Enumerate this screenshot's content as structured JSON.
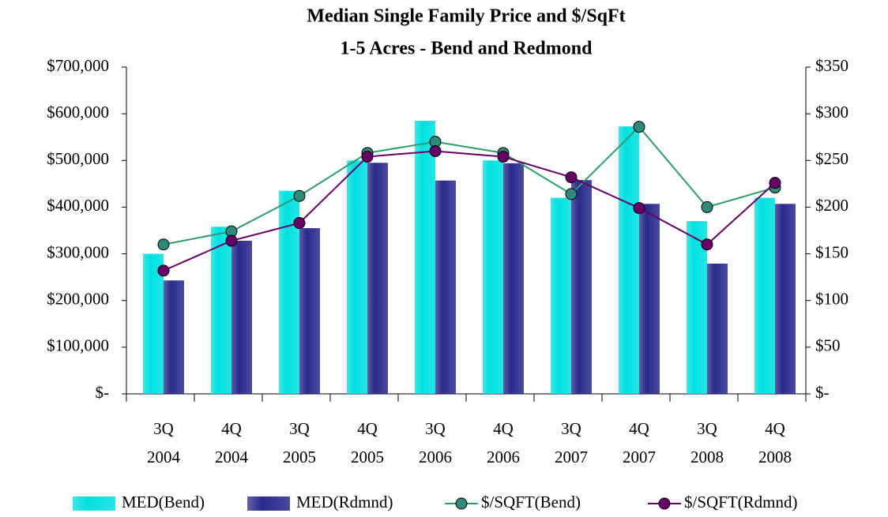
{
  "chart_data": {
    "type": "bar-line",
    "title": "Median Single Family Price and $/SqFt",
    "subtitle": "1-5 Acres - Bend and Redmond",
    "categories": [
      [
        "3Q",
        "2004"
      ],
      [
        "4Q",
        "2004"
      ],
      [
        "3Q",
        "2005"
      ],
      [
        "4Q",
        "2005"
      ],
      [
        "3Q",
        "2006"
      ],
      [
        "4Q",
        "2006"
      ],
      [
        "3Q",
        "2007"
      ],
      [
        "4Q",
        "2007"
      ],
      [
        "3Q",
        "2008"
      ],
      [
        "4Q",
        "2008"
      ]
    ],
    "series": [
      {
        "name": "MED(Bend)",
        "type": "bar",
        "color": "#00e0e0",
        "values": [
          300000,
          358000,
          435000,
          500000,
          585000,
          500000,
          420000,
          573000,
          370000,
          420000
        ]
      },
      {
        "name": "MED(Rdmnd)",
        "type": "bar",
        "color": "#2a2a8c",
        "values": [
          243000,
          328000,
          355000,
          495000,
          457000,
          494000,
          458000,
          407000,
          279000,
          407000
        ]
      },
      {
        "name": "$/SQFT(Bend)",
        "type": "line",
        "axis": "y2",
        "color": "#2e9b6a",
        "marker_color": "#2e8b7a",
        "values": [
          160,
          174,
          212,
          258,
          270,
          258,
          214,
          286,
          200,
          221
        ]
      },
      {
        "name": "$/SQFT(Rdmnd)",
        "type": "line",
        "axis": "y2",
        "color": "#660066",
        "marker_color": "#660066",
        "values": [
          132,
          164,
          183,
          254,
          260,
          254,
          232,
          199,
          160,
          226
        ]
      }
    ],
    "ylim": [
      0,
      700000
    ],
    "yticks": [
      {
        "value": 0,
        "label": "$-"
      },
      {
        "value": 100000,
        "label": "$100,000"
      },
      {
        "value": 200000,
        "label": "$200,000"
      },
      {
        "value": 300000,
        "label": "$300,000"
      },
      {
        "value": 400000,
        "label": "$400,000"
      },
      {
        "value": 500000,
        "label": "$500,000"
      },
      {
        "value": 600000,
        "label": "$600,000"
      },
      {
        "value": 700000,
        "label": "$700,000"
      }
    ],
    "y2lim": [
      0,
      350
    ],
    "y2ticks": [
      {
        "value": 0,
        "label": "$-"
      },
      {
        "value": 50,
        "label": "$50"
      },
      {
        "value": 100,
        "label": "$100"
      },
      {
        "value": 150,
        "label": "$150"
      },
      {
        "value": 200,
        "label": "$200"
      },
      {
        "value": 250,
        "label": "$250"
      },
      {
        "value": 300,
        "label": "$300"
      },
      {
        "value": 350,
        "label": "$350"
      }
    ],
    "grid": false,
    "legend": "bottom"
  }
}
